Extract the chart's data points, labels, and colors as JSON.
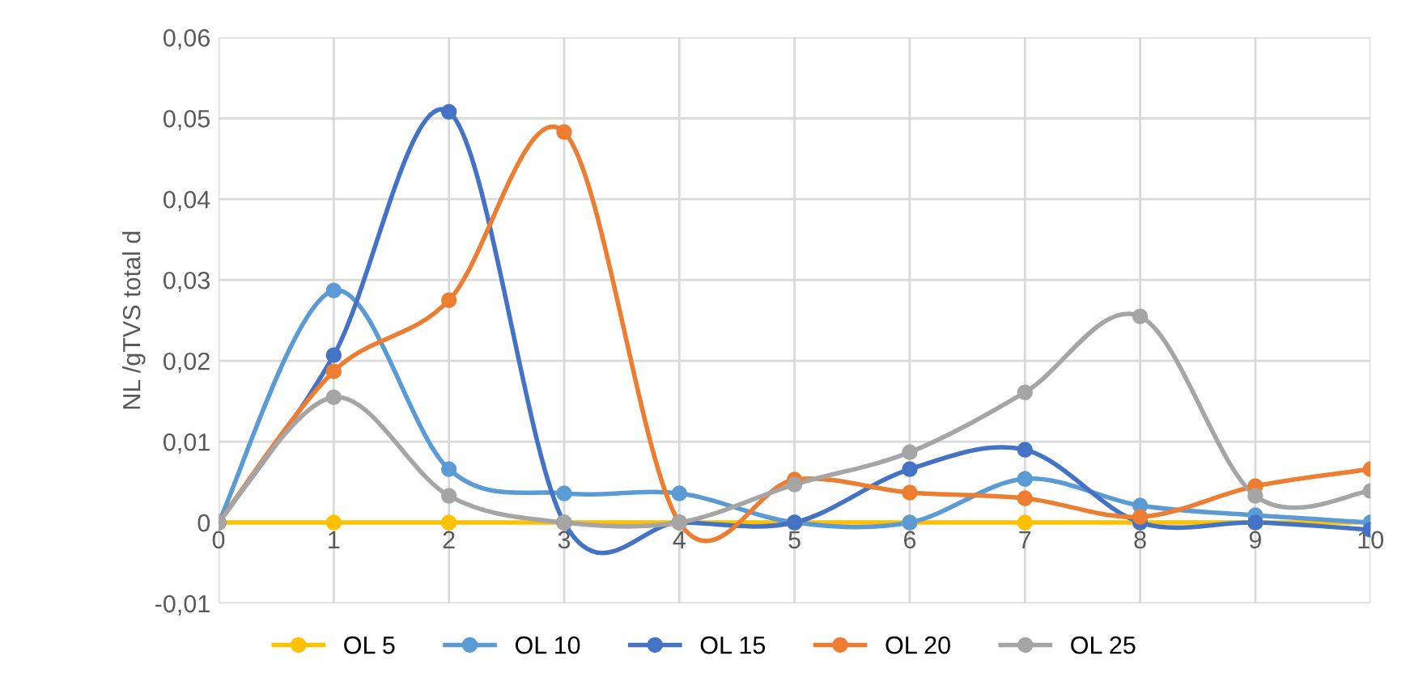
{
  "chart_data": {
    "type": "line",
    "ylabel": "NL /gTVS total d",
    "x": [
      0,
      1,
      2,
      3,
      4,
      5,
      6,
      7,
      8,
      9,
      10
    ],
    "series": [
      {
        "name": "OL 5",
        "color": "#ffc000",
        "values": [
          0,
          0,
          0,
          0,
          0,
          0,
          0,
          0,
          0,
          0,
          0
        ]
      },
      {
        "name": "OL 10",
        "color": "#5b9bd5",
        "values": [
          0,
          0.0287,
          0.0066,
          0.0036,
          0.0036,
          0,
          0,
          0.0054,
          0.0021,
          0.0009,
          0
        ]
      },
      {
        "name": "OL 15",
        "color": "#4472c4",
        "values": [
          0,
          0.0207,
          0.0508,
          0,
          0,
          0,
          0.0066,
          0.009,
          0,
          0,
          -0.0009
        ]
      },
      {
        "name": "OL 20",
        "color": "#ed7d31",
        "values": [
          0,
          0.0187,
          0.0275,
          0.0483,
          0,
          0.0053,
          0.0037,
          0.003,
          0.0007,
          0.0045,
          0.0066
        ]
      },
      {
        "name": "OL 25",
        "color": "#a5a5a5",
        "values": [
          0,
          0.0155,
          0.0033,
          0,
          0,
          0.0047,
          0.0087,
          0.0161,
          0.0255,
          0.0033,
          0.0039
        ]
      }
    ],
    "xlim": [
      0,
      10
    ],
    "xticks": [
      0,
      1,
      2,
      3,
      4,
      5,
      6,
      7,
      8,
      9,
      10
    ],
    "ylim": [
      -0.01,
      0.06
    ],
    "yticks": [
      {
        "value": -0.01,
        "label": "-0,01"
      },
      0,
      {
        "value": 0.01,
        "label": "0,01"
      },
      {
        "value": 0.02,
        "label": "0,02"
      },
      {
        "value": 0.03,
        "label": "0,03"
      },
      {
        "value": 0.04,
        "label": "0,04"
      },
      {
        "value": 0.05,
        "label": "0,05"
      },
      {
        "value": 0.06,
        "label": "0,06"
      }
    ],
    "grid": true,
    "legend": "bottom",
    "marker": "circle",
    "line_style": "solid"
  }
}
